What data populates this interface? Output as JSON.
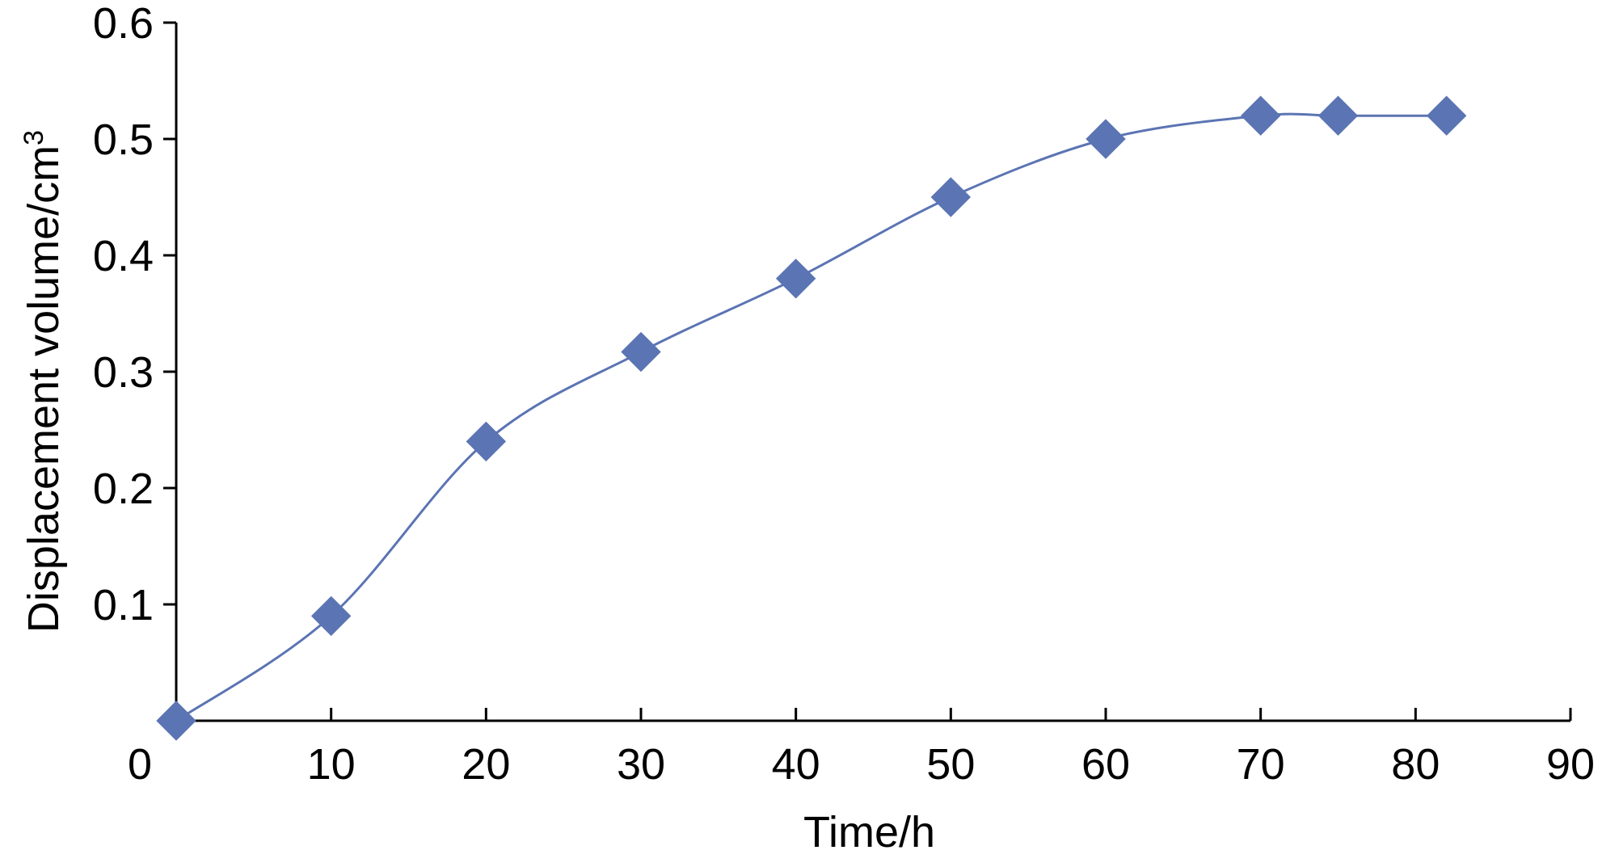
{
  "chart_data": {
    "type": "line",
    "title": "",
    "xlabel": "Time/h",
    "ylabel_main": "Displacement volume/cm",
    "ylabel_sup": "3",
    "xlim": [
      0,
      90
    ],
    "ylim": [
      0,
      0.6
    ],
    "x_ticks": [
      0,
      10,
      20,
      30,
      40,
      50,
      60,
      70,
      80,
      90
    ],
    "x_tick_labels": [
      "0",
      "10",
      "20",
      "30",
      "40",
      "50",
      "60",
      "70",
      "80",
      "90"
    ],
    "y_ticks": [
      0.1,
      0.2,
      0.3,
      0.4,
      0.5,
      0.6
    ],
    "y_tick_labels": [
      "0.1",
      "0.2",
      "0.3",
      "0.4",
      "0.5",
      "0.6"
    ],
    "grid": false,
    "legend": "none",
    "series": [
      {
        "color": "#5B74B3",
        "marker": "diamond",
        "smooth": true,
        "points": [
          {
            "x": 0,
            "y": 0
          },
          {
            "x": 10,
            "y": 0.09
          },
          {
            "x": 20,
            "y": 0.24
          },
          {
            "x": 30,
            "y": 0.317
          },
          {
            "x": 40,
            "y": 0.38
          },
          {
            "x": 50,
            "y": 0.45
          },
          {
            "x": 60,
            "y": 0.5
          },
          {
            "x": 70,
            "y": 0.52
          },
          {
            "x": 75,
            "y": 0.52
          },
          {
            "x": 82,
            "y": 0.52
          }
        ]
      }
    ]
  }
}
